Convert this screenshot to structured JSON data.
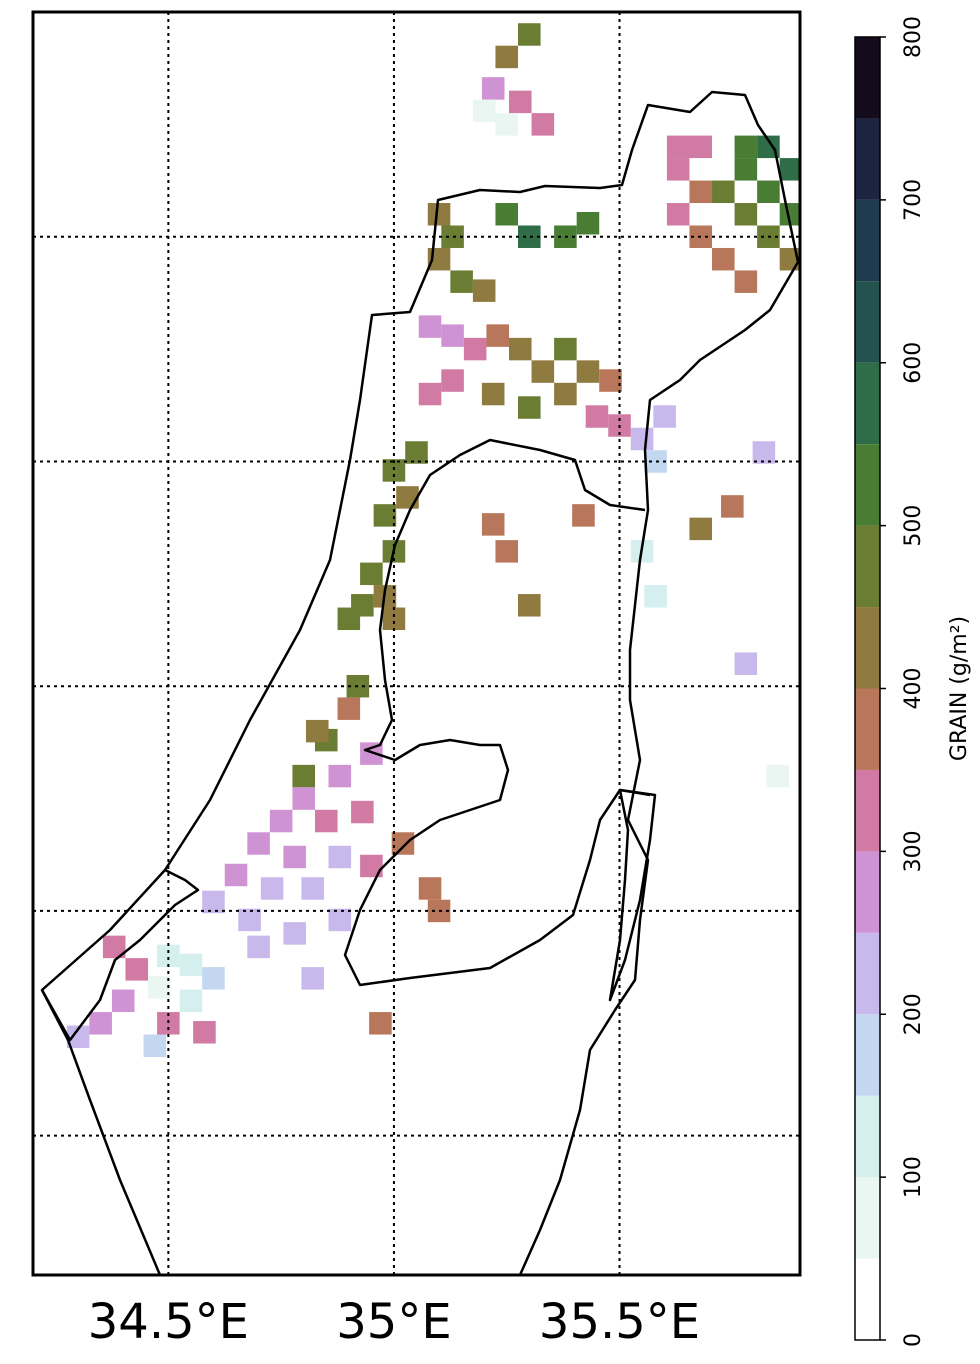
{
  "chart_data": {
    "type": "map",
    "xlim": [
      34.2,
      35.9
    ],
    "ylim": [
      30.69,
      33.5
    ],
    "xticks": [
      {
        "value": 34.5,
        "label": "34.5°E"
      },
      {
        "value": 35.0,
        "label": "35°E"
      },
      {
        "value": 35.5,
        "label": "35.5°E"
      }
    ],
    "lat_gridlines": [
      31.0,
      31.5,
      32.0,
      32.5,
      33.0
    ],
    "cells": {
      "lon": [
        35.78,
        35.83,
        35.88,
        35.78,
        35.73,
        35.83,
        35.88,
        35.78,
        35.83,
        35.88,
        35.63,
        35.68,
        35.63,
        35.68,
        35.63,
        35.68,
        35.73,
        35.78,
        35.25,
        35.3,
        35.38,
        35.43,
        35.1,
        35.13,
        35.1,
        35.15,
        35.2,
        35.08,
        35.13,
        35.18,
        35.23,
        35.28,
        35.33,
        35.38,
        35.43,
        35.48,
        35.38,
        35.3,
        35.22,
        35.13,
        35.08,
        35.45,
        35.5,
        35.55,
        35.58,
        35.6,
        35.05,
        35.0,
        35.03,
        34.98,
        35.0,
        34.95,
        34.93,
        34.98,
        34.9,
        35.0,
        34.92,
        34.85,
        34.8,
        34.9,
        34.83,
        34.95,
        34.88,
        34.8,
        34.75,
        34.85,
        34.93,
        34.7,
        34.78,
        34.88,
        34.95,
        34.65,
        34.73,
        34.82,
        34.6,
        34.68,
        34.78,
        34.88,
        34.7,
        34.38,
        34.43,
        34.5,
        34.55,
        34.6,
        34.48,
        34.55,
        34.4,
        34.35,
        34.5,
        34.58,
        34.47,
        34.3,
        35.42,
        35.22,
        35.25,
        35.3,
        35.68,
        35.75,
        35.82,
        35.58,
        35.55,
        35.78,
        35.85,
        35.25,
        35.3,
        35.22,
        35.28,
        35.33,
        35.25,
        35.2,
        35.08,
        34.97,
        35.1,
        35.02,
        34.82
      ],
      "lat": [
        33.2,
        33.2,
        33.15,
        33.15,
        33.1,
        33.1,
        33.05,
        33.05,
        33.0,
        32.95,
        33.2,
        33.2,
        33.15,
        33.1,
        33.05,
        33.0,
        32.95,
        32.9,
        33.05,
        33.0,
        33.0,
        33.03,
        33.05,
        33.0,
        32.95,
        32.9,
        32.88,
        32.8,
        32.78,
        32.75,
        32.78,
        32.75,
        32.7,
        32.75,
        32.7,
        32.68,
        32.65,
        32.62,
        32.65,
        32.68,
        32.65,
        32.6,
        32.58,
        32.55,
        32.5,
        32.6,
        32.52,
        32.48,
        32.42,
        32.38,
        32.3,
        32.25,
        32.18,
        32.2,
        32.15,
        32.15,
        32.0,
        31.88,
        31.8,
        31.95,
        31.9,
        31.85,
        31.8,
        31.75,
        31.7,
        31.7,
        31.72,
        31.65,
        31.62,
        31.62,
        31.6,
        31.58,
        31.55,
        31.55,
        31.52,
        31.48,
        31.45,
        31.48,
        31.42,
        31.42,
        31.37,
        31.4,
        31.38,
        31.35,
        31.33,
        31.3,
        31.3,
        31.25,
        31.25,
        31.23,
        31.2,
        31.22,
        32.38,
        32.36,
        32.3,
        32.18,
        32.35,
        32.4,
        32.52,
        32.2,
        32.3,
        32.05,
        31.8,
        33.4,
        33.45,
        33.33,
        33.3,
        33.25,
        33.25,
        33.28,
        31.55,
        31.25,
        31.5,
        31.65,
        31.35
      ],
      "values": [
        520,
        560,
        560,
        500,
        470,
        520,
        540,
        460,
        470,
        420,
        320,
        300,
        340,
        380,
        300,
        360,
        380,
        360,
        520,
        560,
        540,
        500,
        440,
        450,
        420,
        470,
        430,
        280,
        260,
        320,
        380,
        420,
        400,
        450,
        410,
        370,
        430,
        480,
        440,
        330,
        300,
        340,
        320,
        200,
        160,
        230,
        450,
        460,
        440,
        460,
        450,
        460,
        470,
        410,
        460,
        420,
        460,
        470,
        480,
        380,
        400,
        260,
        280,
        270,
        280,
        300,
        320,
        270,
        280,
        240,
        330,
        260,
        240,
        220,
        220,
        210,
        230,
        210,
        200,
        340,
        330,
        120,
        140,
        150,
        90,
        110,
        270,
        250,
        300,
        320,
        180,
        230,
        390,
        370,
        390,
        440,
        430,
        350,
        230,
        110,
        100,
        230,
        70,
        400,
        470,
        260,
        330,
        320,
        90,
        80,
        380,
        390,
        360,
        370,
        240
      ]
    },
    "colorbar": {
      "label": "GRAIN (g/m²)",
      "lim": [
        0,
        800
      ],
      "ticks": [
        0,
        100,
        200,
        300,
        400,
        500,
        600,
        700,
        800
      ],
      "colors": [
        "#ffffff",
        "#eaf6f1",
        "#d5eeee",
        "#c3d8f0",
        "#c8b8ec",
        "#cf93d3",
        "#d17aa3",
        "#b8765a",
        "#8f7a3f",
        "#6b7d32",
        "#4a7d34",
        "#2f6c48",
        "#24524e",
        "#1f3b4e",
        "#1d2440",
        "#140b1c"
      ]
    }
  }
}
